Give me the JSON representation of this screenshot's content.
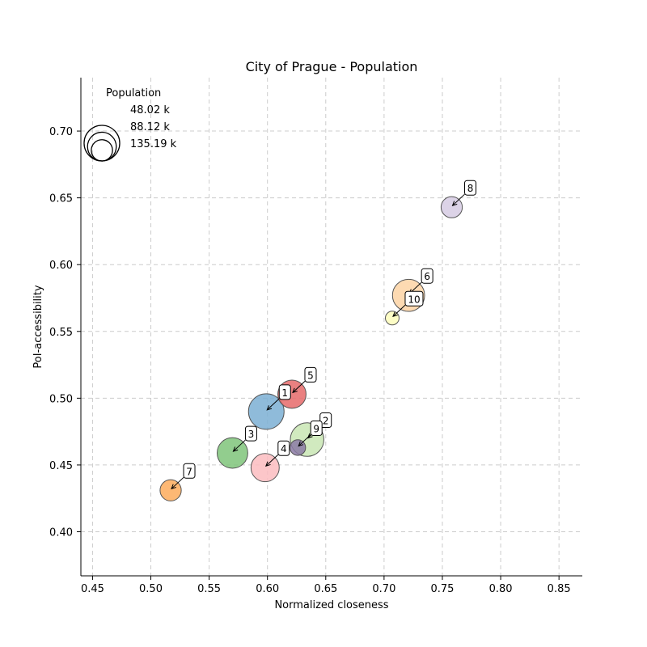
{
  "chart_data": {
    "type": "scatter",
    "title": "City of Prague - Population",
    "xlabel": "Normalized closeness",
    "ylabel": "PoI-accessibility",
    "xlim": [
      0.44,
      0.87
    ],
    "ylim": [
      0.367,
      0.74
    ],
    "xticks": [
      "0.45",
      "0.50",
      "0.55",
      "0.60",
      "0.65",
      "0.70",
      "0.75",
      "0.80",
      "0.85"
    ],
    "yticks": [
      "0.40",
      "0.45",
      "0.50",
      "0.55",
      "0.60",
      "0.65",
      "0.70"
    ],
    "grid": true,
    "legend": {
      "title": "Population",
      "position": "top-left",
      "entries": [
        {
          "label": "48.02 k",
          "value": 48.02
        },
        {
          "label": "88.12 k",
          "value": 88.12
        },
        {
          "label": "135.19 k",
          "value": 135.19
        }
      ]
    },
    "points": [
      {
        "label": "1",
        "x": 0.599,
        "y": 0.49,
        "population": 135.0,
        "color": "#7bafd4"
      },
      {
        "label": "2",
        "x": 0.634,
        "y": 0.469,
        "population": 120.0,
        "color": "#c9e6b4"
      },
      {
        "label": "3",
        "x": 0.57,
        "y": 0.459,
        "population": 100.0,
        "color": "#7fc47a"
      },
      {
        "label": "4",
        "x": 0.598,
        "y": 0.448,
        "population": 85.0,
        "color": "#fbbcbf"
      },
      {
        "label": "5",
        "x": 0.621,
        "y": 0.503,
        "population": 85.0,
        "color": "#e66a6a"
      },
      {
        "label": "6",
        "x": 0.721,
        "y": 0.577,
        "population": 110.0,
        "color": "#fdd3a5"
      },
      {
        "label": "7",
        "x": 0.517,
        "y": 0.431,
        "population": 48.0,
        "color": "#fdac5c"
      },
      {
        "label": "8",
        "x": 0.758,
        "y": 0.643,
        "population": 48.0,
        "color": "#d6cbe3"
      },
      {
        "label": "9",
        "x": 0.626,
        "y": 0.463,
        "population": 26.0,
        "color": "#8b7aa5"
      },
      {
        "label": "10",
        "x": 0.707,
        "y": 0.56,
        "population": 20.0,
        "color": "#fdfdbc"
      }
    ]
  }
}
